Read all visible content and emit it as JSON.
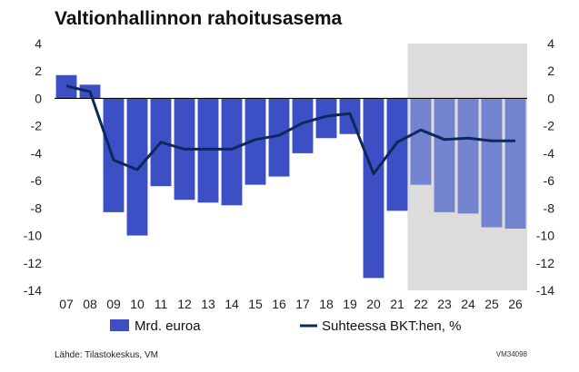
{
  "chart_data": {
    "type": "bar",
    "title": "Valtionhallinnon rahoitusasema",
    "categories": [
      "07",
      "08",
      "09",
      "10",
      "11",
      "12",
      "13",
      "14",
      "15",
      "16",
      "17",
      "18",
      "19",
      "20",
      "21",
      "22",
      "23",
      "24",
      "25",
      "26"
    ],
    "forecast_from": "22",
    "series": [
      {
        "name": "Mrd. euroa",
        "type": "bar",
        "axis": "left",
        "values": [
          1.7,
          1.0,
          -8.3,
          -10.0,
          -6.4,
          -7.4,
          -7.6,
          -7.8,
          -6.3,
          -5.7,
          -4.0,
          -2.9,
          -2.6,
          -13.1,
          -8.2,
          -6.3,
          -8.3,
          -8.4,
          -9.4,
          -9.5
        ]
      },
      {
        "name": "Suhteessa BKT:hen, %",
        "type": "line",
        "axis": "right",
        "values": [
          0.9,
          0.5,
          -4.5,
          -5.2,
          -3.2,
          -3.7,
          -3.7,
          -3.7,
          -3.0,
          -2.7,
          -1.8,
          -1.3,
          -1.1,
          -5.5,
          -3.2,
          -2.3,
          -3.0,
          -2.9,
          -3.1,
          -3.1
        ]
      }
    ],
    "ylim": [
      -14,
      4
    ],
    "y2lim": [
      -14,
      4
    ],
    "yticks": [
      "4",
      "2",
      "0",
      "-2",
      "-4",
      "-6",
      "-8",
      "-10",
      "-12",
      "-14"
    ],
    "y2ticks": [
      "4",
      "2",
      "0",
      "-2",
      "-4",
      "-6",
      "-8",
      "-10",
      "-12",
      "-14"
    ],
    "grid": false,
    "legend_position": "bottom",
    "colors": {
      "bar": "#3c4fc4",
      "bar_forecast": "#7483cf",
      "line": "#0a2a5c",
      "forecast_bg": "#dcdcdc",
      "zero_line": "#000000"
    }
  },
  "source": "Lähde: Tilastokeskus, VM",
  "code": "VM34098"
}
